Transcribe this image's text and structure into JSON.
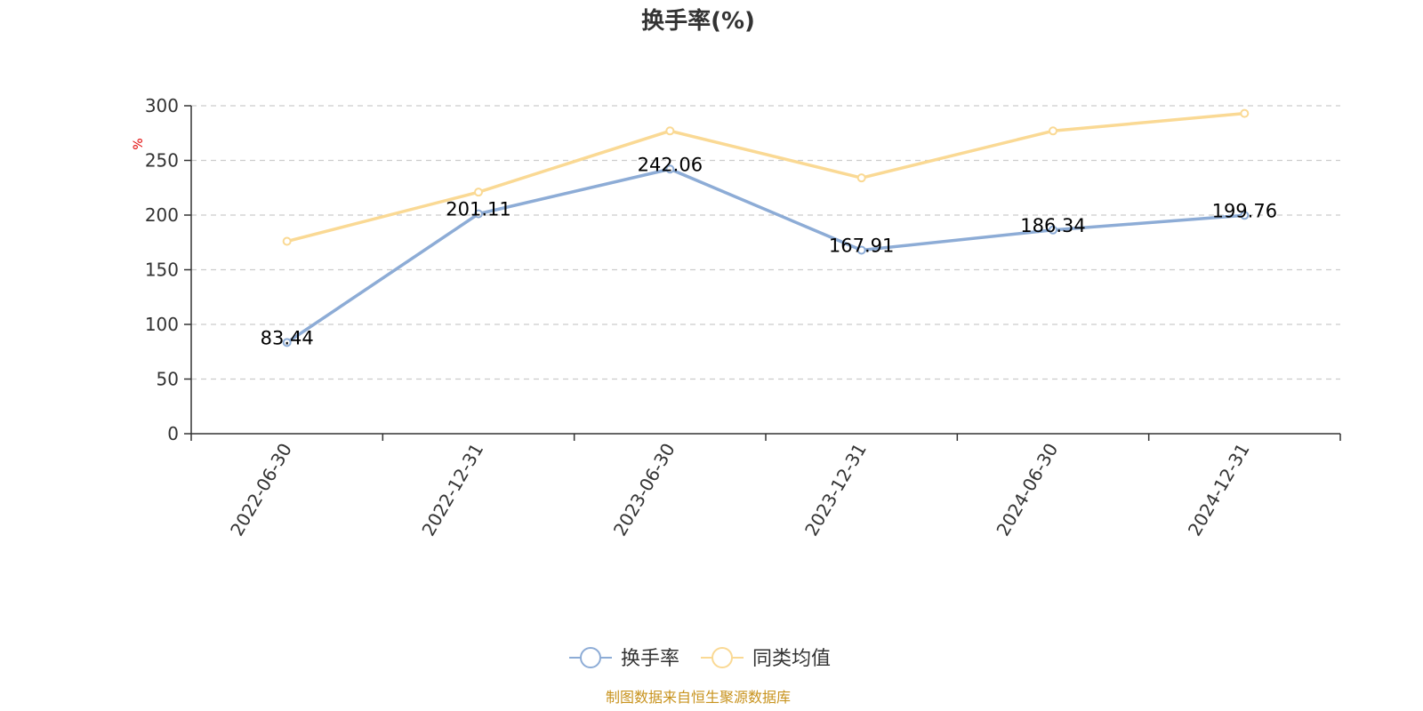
{
  "chart_data": {
    "type": "line",
    "title": "换手率(%)",
    "ylabel": "%",
    "xlabel": "",
    "ylim": [
      0,
      300
    ],
    "yticks": [
      0,
      50,
      100,
      150,
      200,
      250,
      300
    ],
    "categories": [
      "2022-06-30",
      "2022-12-31",
      "2023-06-30",
      "2023-12-31",
      "2024-06-30",
      "2024-12-31"
    ],
    "series": [
      {
        "name": "换手率",
        "values": [
          83.44,
          201.11,
          242.06,
          167.91,
          186.34,
          199.76
        ],
        "labels": [
          "83.44",
          "201.11",
          "242.06",
          "167.91",
          "186.34",
          "199.76"
        ],
        "color": "#8dacd6"
      },
      {
        "name": "同类均值",
        "values": [
          176,
          221,
          277,
          234,
          277,
          293
        ],
        "color": "#fad994"
      }
    ],
    "grid": true,
    "legend_position": "bottom-center"
  },
  "footer": {
    "source": "制图数据来自恒生聚源数据库"
  },
  "colors": {
    "axis": "#333333",
    "grid": "#cccccc",
    "unit": "#e00000",
    "footer": "#c8931e"
  }
}
